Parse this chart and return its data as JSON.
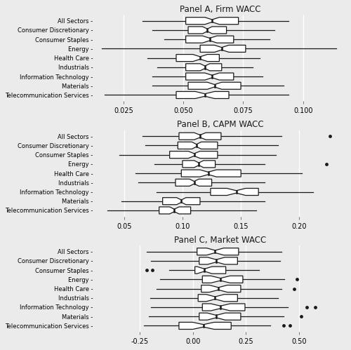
{
  "panels": [
    {
      "title": "Panel A, Firm WACC",
      "categories": [
        "All Sectors",
        "Consumer Discretionary",
        "Consumer Staples",
        "Energy",
        "Health Care",
        "Industrials",
        "Information Technology",
        "Materials",
        "Telecommunication Services"
      ],
      "xlim": [
        0.013,
        0.118
      ],
      "xticks": [
        0.025,
        0.05,
        0.075,
        0.1
      ],
      "xticklabels": [
        "0.025",
        "0.050",
        "0.075",
        "0.100"
      ],
      "boxplots": [
        {
          "med": 0.062,
          "q1": 0.051,
          "q3": 0.073,
          "whislo": 0.033,
          "whishi": 0.094,
          "notch_low": 0.059,
          "notch_high": 0.065,
          "fliers": []
        },
        {
          "med": 0.06,
          "q1": 0.052,
          "q3": 0.068,
          "whislo": 0.037,
          "whishi": 0.088,
          "notch_low": 0.058,
          "notch_high": 0.062,
          "fliers": []
        },
        {
          "med": 0.061,
          "q1": 0.051,
          "q3": 0.071,
          "whislo": 0.042,
          "whishi": 0.086,
          "notch_low": 0.058,
          "notch_high": 0.064,
          "fliers": []
        },
        {
          "med": 0.066,
          "q1": 0.057,
          "q3": 0.076,
          "whislo": 0.016,
          "whishi": 0.114,
          "notch_low": 0.063,
          "notch_high": 0.069,
          "fliers": []
        },
        {
          "med": 0.057,
          "q1": 0.047,
          "q3": 0.065,
          "whislo": 0.035,
          "whishi": 0.082,
          "notch_low": 0.054,
          "notch_high": 0.06,
          "fliers": []
        },
        {
          "med": 0.059,
          "q1": 0.051,
          "q3": 0.066,
          "whislo": 0.039,
          "whishi": 0.079,
          "notch_low": 0.057,
          "notch_high": 0.061,
          "fliers": []
        },
        {
          "med": 0.062,
          "q1": 0.051,
          "q3": 0.071,
          "whislo": 0.037,
          "whishi": 0.083,
          "notch_low": 0.059,
          "notch_high": 0.065,
          "fliers": []
        },
        {
          "med": 0.063,
          "q1": 0.052,
          "q3": 0.074,
          "whislo": 0.037,
          "whishi": 0.092,
          "notch_low": 0.06,
          "notch_high": 0.066,
          "fliers": []
        },
        {
          "med": 0.059,
          "q1": 0.047,
          "q3": 0.069,
          "whislo": 0.017,
          "whishi": 0.094,
          "notch_low": 0.055,
          "notch_high": 0.063,
          "fliers": []
        }
      ]
    },
    {
      "title": "Panel B, CAPM WACC",
      "categories": [
        "All Sectors",
        "Consumer Discretionary",
        "Consumer Staples",
        "Energy",
        "Health Care",
        "Industrials",
        "Information Technology",
        "Materials",
        "Telecommunication Services"
      ],
      "xlim": [
        0.025,
        0.24
      ],
      "xticks": [
        0.05,
        0.1,
        0.15,
        0.2
      ],
      "xticklabels": [
        "0.05",
        "0.10",
        "0.15",
        "0.20"
      ],
      "boxplots": [
        {
          "med": 0.115,
          "q1": 0.097,
          "q3": 0.133,
          "whislo": 0.066,
          "whishi": 0.185,
          "notch_low": 0.11,
          "notch_high": 0.12,
          "fliers": [
            0.226
          ]
        },
        {
          "med": 0.112,
          "q1": 0.096,
          "q3": 0.13,
          "whislo": 0.068,
          "whishi": 0.182,
          "notch_low": 0.108,
          "notch_high": 0.116,
          "fliers": []
        },
        {
          "med": 0.11,
          "q1": 0.089,
          "q3": 0.13,
          "whislo": 0.046,
          "whishi": 0.18,
          "notch_low": 0.105,
          "notch_high": 0.115,
          "fliers": []
        },
        {
          "med": 0.114,
          "q1": 0.1,
          "q3": 0.128,
          "whislo": 0.076,
          "whishi": 0.17,
          "notch_low": 0.11,
          "notch_high": 0.118,
          "fliers": [
            0.223
          ]
        },
        {
          "med": 0.122,
          "q1": 0.099,
          "q3": 0.15,
          "whislo": 0.06,
          "whishi": 0.202,
          "notch_low": 0.115,
          "notch_high": 0.129,
          "fliers": []
        },
        {
          "med": 0.11,
          "q1": 0.094,
          "q3": 0.125,
          "whislo": 0.062,
          "whishi": 0.17,
          "notch_low": 0.106,
          "notch_high": 0.114,
          "fliers": []
        },
        {
          "med": 0.146,
          "q1": 0.124,
          "q3": 0.165,
          "whislo": 0.078,
          "whishi": 0.212,
          "notch_low": 0.138,
          "notch_high": 0.154,
          "fliers": []
        },
        {
          "med": 0.099,
          "q1": 0.083,
          "q3": 0.115,
          "whislo": 0.048,
          "whishi": 0.17,
          "notch_low": 0.095,
          "notch_high": 0.103,
          "fliers": []
        },
        {
          "med": 0.093,
          "q1": 0.08,
          "q3": 0.107,
          "whislo": 0.036,
          "whishi": 0.163,
          "notch_low": 0.089,
          "notch_high": 0.097,
          "fliers": []
        }
      ]
    },
    {
      "title": "Panel C, Market WACC",
      "categories": [
        "All Sectors",
        "Consumer Discretionary",
        "Consumer Staples",
        "Energy",
        "Health Care",
        "Industrials",
        "Information Technology",
        "Materials",
        "Telecommunication Services"
      ],
      "xlim": [
        -0.46,
        0.72
      ],
      "xticks": [
        -0.25,
        0.0,
        0.25,
        0.5
      ],
      "xticklabels": [
        "-0.25",
        "0.00",
        "0.25",
        "0.50"
      ],
      "boxplots": [
        {
          "med": 0.105,
          "q1": 0.02,
          "q3": 0.215,
          "whislo": -0.215,
          "whishi": 0.415,
          "notch_low": 0.065,
          "notch_high": 0.145,
          "fliers": []
        },
        {
          "med": 0.11,
          "q1": 0.03,
          "q3": 0.21,
          "whislo": -0.195,
          "whishi": 0.41,
          "notch_low": 0.07,
          "notch_high": 0.15,
          "fliers": []
        },
        {
          "med": 0.055,
          "q1": 0.01,
          "q3": 0.155,
          "whislo": -0.11,
          "whishi": 0.31,
          "notch_low": 0.02,
          "notch_high": 0.09,
          "fliers": [
            -0.215,
            -0.19
          ]
        },
        {
          "med": 0.13,
          "q1": 0.045,
          "q3": 0.235,
          "whislo": -0.155,
          "whishi": 0.43,
          "notch_low": 0.085,
          "notch_high": 0.175,
          "fliers": [
            0.49
          ]
        },
        {
          "med": 0.12,
          "q1": 0.04,
          "q3": 0.225,
          "whislo": -0.17,
          "whishi": 0.415,
          "notch_low": 0.078,
          "notch_high": 0.162,
          "fliers": [
            0.475
          ]
        },
        {
          "med": 0.105,
          "q1": 0.025,
          "q3": 0.21,
          "whislo": -0.2,
          "whishi": 0.4,
          "notch_low": 0.063,
          "notch_high": 0.147,
          "fliers": []
        },
        {
          "med": 0.13,
          "q1": 0.045,
          "q3": 0.245,
          "whislo": -0.195,
          "whishi": 0.445,
          "notch_low": 0.085,
          "notch_high": 0.175,
          "fliers": [
            0.535,
            0.575
          ]
        },
        {
          "med": 0.11,
          "q1": 0.03,
          "q3": 0.225,
          "whislo": -0.205,
          "whishi": 0.425,
          "notch_low": 0.068,
          "notch_high": 0.152,
          "fliers": [
            0.51
          ]
        },
        {
          "med": 0.05,
          "q1": -0.065,
          "q3": 0.18,
          "whislo": -0.23,
          "whishi": 0.365,
          "notch_low": 0.0,
          "notch_high": 0.1,
          "fliers": [
            0.425,
            0.455
          ]
        }
      ]
    }
  ],
  "bg_color": "#ebebeb",
  "grid_color": "#ffffff",
  "box_facecolor": "#ffffff",
  "box_edgecolor": "#1a1a1a",
  "text_color": "#1a1a1a",
  "flier_color": "#1a1a1a",
  "linewidth": 0.9
}
